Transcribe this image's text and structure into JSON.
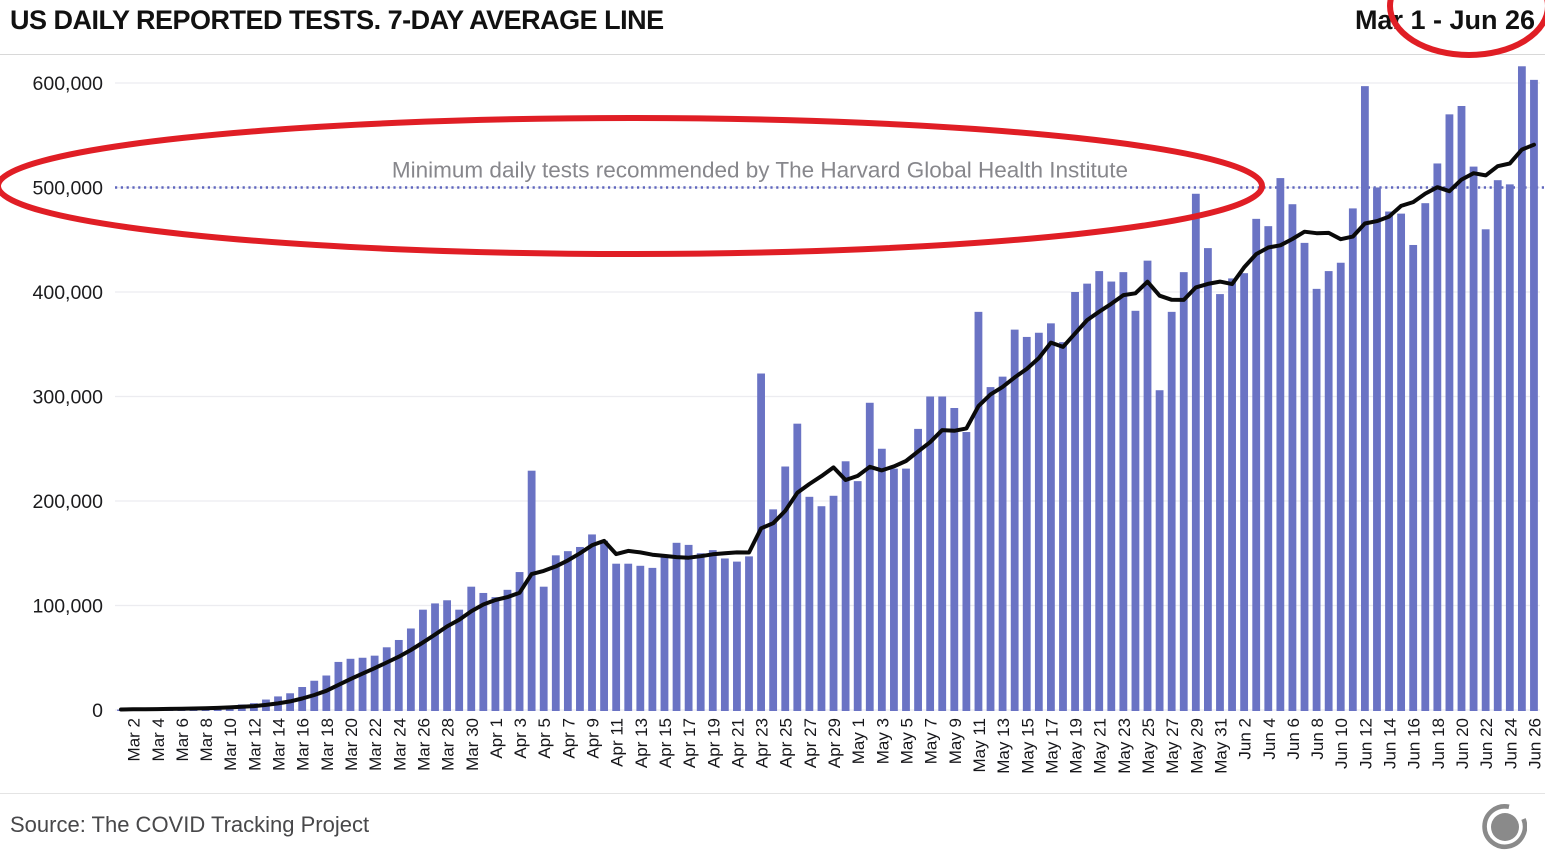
{
  "header": {
    "title": "US DAILY REPORTED TESTS. 7-DAY AVERAGE LINE",
    "date_range": "Mar 1 - Jun 26"
  },
  "chart_data": {
    "type": "bar",
    "title": "US DAILY REPORTED TESTS. 7-DAY AVERAGE LINE",
    "categories": [
      "Mar 1",
      "Mar 2",
      "Mar 3",
      "Mar 4",
      "Mar 5",
      "Mar 6",
      "Mar 7",
      "Mar 8",
      "Mar 9",
      "Mar 10",
      "Mar 11",
      "Mar 12",
      "Mar 13",
      "Mar 14",
      "Mar 15",
      "Mar 16",
      "Mar 17",
      "Mar 18",
      "Mar 19",
      "Mar 20",
      "Mar 21",
      "Mar 22",
      "Mar 23",
      "Mar 24",
      "Mar 25",
      "Mar 26",
      "Mar 27",
      "Mar 28",
      "Mar 29",
      "Mar 30",
      "Mar 31",
      "Apr 1",
      "Apr 2",
      "Apr 3",
      "Apr 4",
      "Apr 5",
      "Apr 6",
      "Apr 7",
      "Apr 8",
      "Apr 9",
      "Apr 10",
      "Apr 11",
      "Apr 12",
      "Apr 13",
      "Apr 14",
      "Apr 15",
      "Apr 16",
      "Apr 17",
      "Apr 18",
      "Apr 19",
      "Apr 20",
      "Apr 21",
      "Apr 22",
      "Apr 23",
      "Apr 24",
      "Apr 25",
      "Apr 26",
      "Apr 27",
      "Apr 28",
      "Apr 29",
      "Apr 30",
      "May 1",
      "May 2",
      "May 3",
      "May 4",
      "May 5",
      "May 6",
      "May 7",
      "May 8",
      "May 9",
      "May 10",
      "May 11",
      "May 12",
      "May 13",
      "May 14",
      "May 15",
      "May 16",
      "May 17",
      "May 18",
      "May 19",
      "May 20",
      "May 21",
      "May 22",
      "May 23",
      "May 24",
      "May 25",
      "May 26",
      "May 27",
      "May 28",
      "May 29",
      "May 30",
      "May 31",
      "Jun 1",
      "Jun 2",
      "Jun 3",
      "Jun 4",
      "Jun 5",
      "Jun 6",
      "Jun 7",
      "Jun 8",
      "Jun 9",
      "Jun 10",
      "Jun 11",
      "Jun 12",
      "Jun 13",
      "Jun 14",
      "Jun 15",
      "Jun 16",
      "Jun 17",
      "Jun 18",
      "Jun 19",
      "Jun 20",
      "Jun 21",
      "Jun 22",
      "Jun 23",
      "Jun 24",
      "Jun 25",
      "Jun 26"
    ],
    "series": [
      {
        "name": "Daily reported tests",
        "type": "bar",
        "color": "#6a73c4",
        "values": [
          500,
          800,
          900,
          1300,
          1700,
          2100,
          2900,
          2200,
          3000,
          4000,
          5300,
          6500,
          10000,
          13000,
          16000,
          22000,
          28000,
          33000,
          46000,
          49000,
          50000,
          52000,
          60000,
          67000,
          78000,
          96000,
          102000,
          105000,
          96000,
          118000,
          112000,
          108000,
          115000,
          132000,
          229000,
          118000,
          148000,
          152000,
          156000,
          168000,
          162000,
          140000,
          140000,
          138000,
          136000,
          148000,
          160000,
          158000,
          150000,
          153000,
          145000,
          142000,
          147000,
          322000,
          192000,
          233000,
          274000,
          204000,
          195000,
          205000,
          238000,
          219000,
          294000,
          250000,
          231000,
          231000,
          269000,
          300000,
          300000,
          289000,
          266000,
          381000,
          309000,
          319000,
          364000,
          357000,
          361000,
          370000,
          352000,
          400000,
          408000,
          420000,
          410000,
          419000,
          382000,
          430000,
          306000,
          381000,
          419000,
          494000,
          442000,
          398000,
          413000,
          418000,
          470000,
          463000,
          509000,
          484000,
          447000,
          403000,
          420000,
          428000,
          480000,
          597000,
          500000,
          477000,
          475000,
          445000,
          485000,
          523000,
          570000,
          578000,
          520000,
          460000,
          507000,
          503000,
          616000,
          603000
        ]
      },
      {
        "name": "7-day average",
        "type": "line",
        "derived": "trailing-7-day-average-of-daily-tests",
        "color": "#0a0a0a"
      }
    ],
    "y_axis": {
      "ticks": [
        0,
        100000,
        200000,
        300000,
        400000,
        500000,
        600000
      ],
      "tick_labels": [
        "0",
        "100,000",
        "200,000",
        "300,000",
        "400,000",
        "500,000",
        "600,000"
      ],
      "ylim": [
        0,
        620000
      ]
    },
    "x_axis": {
      "tick_every": 2,
      "first_tick_index": 1,
      "first_tick_label": "Mar 2",
      "last_tick_label": "Jun 26"
    },
    "threshold_line": {
      "value": 500000,
      "label": "Minimum daily tests recommended by The Harvard Global Health Institute",
      "style": "dotted",
      "color": "#5f66bd",
      "label_color": "#87878c"
    },
    "highlights": [
      {
        "shape": "ellipse",
        "target": "threshold-line-and-500000-label",
        "color": "#e01e25"
      },
      {
        "shape": "ellipse",
        "target": "end-date-jun-26",
        "color": "#e01e25"
      }
    ],
    "grid": true,
    "legend": "none"
  },
  "footer": {
    "source": "Source: The COVID Tracking Project",
    "logo": "covid-tracking-project-logo"
  }
}
